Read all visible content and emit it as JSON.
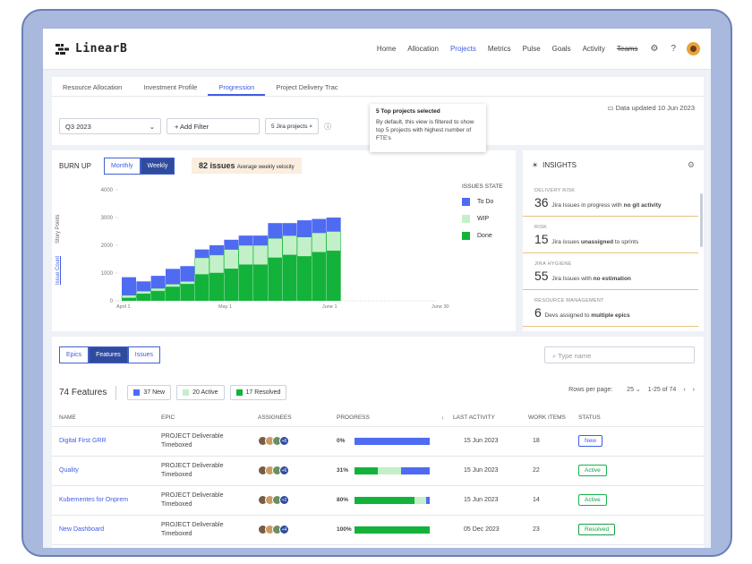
{
  "app": {
    "logo": "LinearB"
  },
  "nav": {
    "items": [
      "Home",
      "Allocation",
      "Projects",
      "Metrics",
      "Pulse",
      "Goals",
      "Activity",
      "Teams"
    ],
    "active": "Projects"
  },
  "tabs": [
    "Resource Allocation",
    "Investment Profile",
    "Progression",
    "Project Delivery Trac"
  ],
  "active_tab": "Progression",
  "filters": {
    "quarter": "Q3 2023",
    "add_filter": "+ Add Filter",
    "chip": "5 Jira projects ×"
  },
  "data_updated": "Data updated 10 Jun 2023",
  "tooltip": {
    "title": "5 Top projects selected",
    "body": "By default, this view is filtered to show top 5 projects with highest number of FTE's"
  },
  "burnup": {
    "title": "BURN UP",
    "toggle": [
      "Monthly",
      "Weekly"
    ],
    "toggle_active": "Weekly",
    "issues_count": "82 issues",
    "issues_note": "Average weekly velocity",
    "y_label_points": "Story Points",
    "y_label_count": "Issue Count",
    "legend_title": "ISSUES STATE",
    "legend": [
      {
        "name": "To Do",
        "color": "#4f6bf2"
      },
      {
        "name": "WIP",
        "color": "#c3f0c8"
      },
      {
        "name": "Done",
        "color": "#13b33b"
      }
    ]
  },
  "chart_data": {
    "type": "bar",
    "stacked": true,
    "categories": [
      "Apr 1",
      "",
      "",
      "",
      "",
      "",
      "May 1",
      "",
      "",
      "",
      "",
      "",
      "Jun 1",
      "",
      ""
    ],
    "x_ticks": [
      "April 1",
      "May 1",
      "June 1",
      "June 30"
    ],
    "y_ticks": [
      0,
      1000,
      2000,
      3000,
      4000
    ],
    "ylim": [
      0,
      4000
    ],
    "series": [
      {
        "name": "Done",
        "values": [
          100,
          250,
          350,
          500,
          600,
          950,
          1000,
          1150,
          1300,
          1300,
          1550,
          1650,
          1600,
          1750,
          1800
        ]
      },
      {
        "name": "WIP",
        "values": [
          100,
          100,
          100,
          100,
          100,
          600,
          650,
          700,
          700,
          700,
          700,
          700,
          700,
          700,
          700
        ]
      },
      {
        "name": "To Do",
        "values": [
          650,
          350,
          450,
          550,
          550,
          300,
          350,
          350,
          350,
          350,
          550,
          450,
          600,
          500,
          500
        ]
      }
    ]
  },
  "insights": {
    "title": "INSIGHTS",
    "items": [
      {
        "category": "DELIVERY RISK",
        "number": "36",
        "text": "Jira Issues in progress with",
        "bold": "no git activity"
      },
      {
        "category": "RISK",
        "number": "15",
        "text": "Jira issues",
        "bold": "unassigned",
        "tail": "to sprints"
      },
      {
        "category": "JIRA HYGIENE",
        "number": "55",
        "text": "Jira Issues with",
        "bold": "no estimation"
      },
      {
        "category": "RESOURCE MANAGEMENT",
        "number": "6",
        "text": "Devs assigned to",
        "bold": "multiple epics"
      }
    ]
  },
  "features": {
    "tabs": [
      "Epics",
      "Features",
      "Issues"
    ],
    "active_tab": "Features",
    "search_placeholder": "Type name",
    "count": "74 Features",
    "chips": [
      {
        "label": "37 New",
        "color": "#4f6bf2"
      },
      {
        "label": "20 Active",
        "color": "#c3f0c8"
      },
      {
        "label": "17 Resolved",
        "color": "#13b33b"
      }
    ],
    "rows_per_page_label": "Rows per page:",
    "rows_per_page": "25",
    "range": "1-25 of 74",
    "columns": [
      "NAME",
      "EPIC",
      "ASSIGNEES",
      "PROGRESS",
      "LAST ACTIVITY",
      "WORK ITEMS",
      "STATUS"
    ],
    "rows": [
      {
        "name": "Digital First GRR",
        "epic1": "PROJECT Deliverable",
        "epic2": "Timeboxed",
        "more": "+6",
        "progress_label": "0%",
        "progress": {
          "done": 0,
          "wip": 0,
          "todo": 1.0
        },
        "last": "15 Jun 2023",
        "items": "18",
        "status": "New"
      },
      {
        "name": "Quality",
        "epic1": "PROJECT Deliverable",
        "epic2": "Timeboxed",
        "more": "+6",
        "progress_label": "31%",
        "progress": {
          "done": 0.31,
          "wip": 0.31,
          "todo": 0.38
        },
        "last": "15 Jun 2023",
        "items": "22",
        "status": "Active"
      },
      {
        "name": "Kubernentes for Onprem",
        "epic1": "PROJECT Deliverable",
        "epic2": "Timeboxed",
        "more": "+2",
        "progress_label": "80%",
        "progress": {
          "done": 0.8,
          "wip": 0.15,
          "todo": 0.05
        },
        "last": "15 Jun 2023",
        "items": "14",
        "status": "Active"
      },
      {
        "name": "New Dashboard",
        "epic1": "PROJECT Deliverable",
        "epic2": "Timeboxed",
        "more": "+4",
        "progress_label": "100%",
        "progress": {
          "done": 1.0,
          "wip": 0,
          "todo": 0
        },
        "last": "05 Dec 2023",
        "items": "23",
        "status": "Resolved"
      }
    ]
  }
}
